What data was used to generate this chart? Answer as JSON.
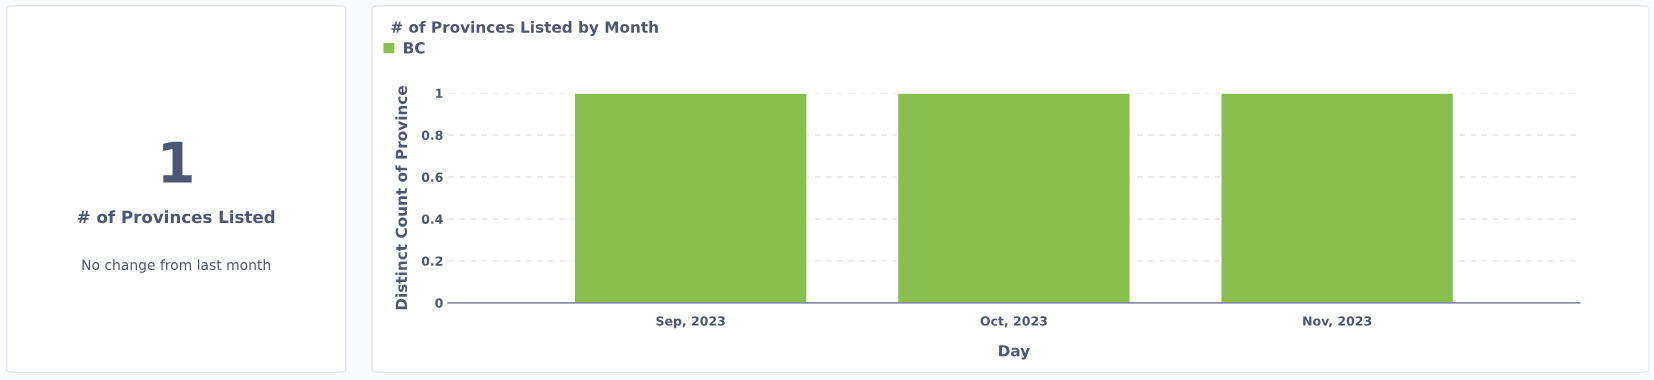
{
  "chart_data": [
    {
      "type": "other",
      "title": "# of Provinces Listed",
      "annotations": [
        "1",
        "No change from last month"
      ]
    },
    {
      "type": "bar",
      "title": "# of Provinces Listed by Month",
      "xlabel": "Day",
      "ylabel": "Distinct Count of Province",
      "categories": [
        "Sep, 2023",
        "Oct, 2023",
        "Nov, 2023"
      ],
      "series": [
        {
          "name": "BC",
          "color": "#88bf4d",
          "values": [
            1,
            1,
            1
          ]
        }
      ],
      "ylim": [
        0,
        1
      ],
      "yticks": [
        0,
        0.2,
        0.4,
        0.6,
        0.8,
        1
      ],
      "grid": "y",
      "legend": "top left"
    }
  ]
}
